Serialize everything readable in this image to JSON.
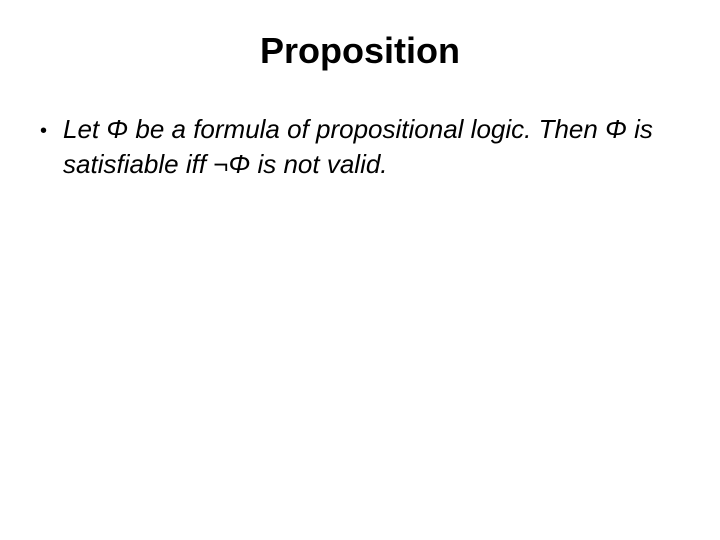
{
  "slide": {
    "title": "Proposition",
    "bullet_text": "Let Φ be a formula of propositional logic. Then Φ is satisfiable iff ¬Φ is not valid.",
    "title_fontsize": 36,
    "body_fontsize": 26,
    "background_color": "#ffffff",
    "text_color": "#000000"
  }
}
